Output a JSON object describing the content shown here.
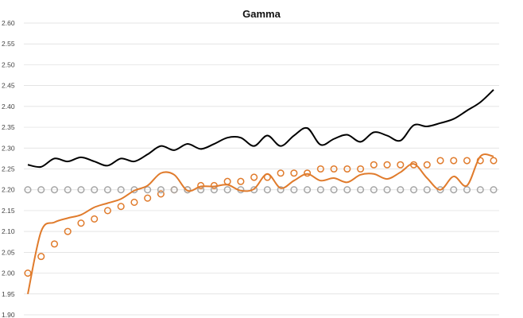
{
  "chart_data": {
    "type": "line",
    "title": "Gamma",
    "xlabel": "",
    "ylabel": "",
    "ylim": [
      1.9,
      2.6
    ],
    "y_ticks": [
      "2.60",
      "2.55",
      "2.50",
      "2.45",
      "2.40",
      "2.35",
      "2.30",
      "2.25",
      "2.20",
      "2.15",
      "2.10",
      "2.05",
      "2.00",
      "1.95",
      "1.90"
    ],
    "grid": "horizontal",
    "legend": "none",
    "x_count": 36,
    "series": [
      {
        "kind": "line",
        "color": "#000000",
        "values": [
          2.26,
          2.255,
          2.275,
          2.268,
          2.278,
          2.268,
          2.258,
          2.275,
          2.268,
          2.285,
          2.305,
          2.295,
          2.31,
          2.298,
          2.31,
          2.325,
          2.325,
          2.305,
          2.33,
          2.305,
          2.33,
          2.348,
          2.308,
          2.322,
          2.332,
          2.315,
          2.338,
          2.33,
          2.318,
          2.355,
          2.352,
          2.36,
          2.37,
          2.39,
          2.41,
          2.44
        ]
      },
      {
        "kind": "line",
        "color": "#E07B2C",
        "values": [
          1.95,
          2.1,
          2.122,
          2.132,
          2.14,
          2.158,
          2.168,
          2.178,
          2.198,
          2.21,
          2.24,
          2.236,
          2.198,
          2.208,
          2.208,
          2.212,
          2.198,
          2.202,
          2.238,
          2.204,
          2.222,
          2.238,
          2.222,
          2.228,
          2.218,
          2.236,
          2.238,
          2.226,
          2.242,
          2.262,
          2.228,
          2.2,
          2.232,
          2.21,
          2.28,
          2.28
        ]
      },
      {
        "kind": "markers",
        "color": "#E07B2C",
        "values": [
          2.0,
          2.04,
          2.07,
          2.1,
          2.12,
          2.13,
          2.15,
          2.16,
          2.17,
          2.18,
          2.19,
          2.2,
          2.2,
          2.21,
          2.21,
          2.22,
          2.22,
          2.23,
          2.23,
          2.24,
          2.24,
          2.24,
          2.25,
          2.25,
          2.25,
          2.25,
          2.26,
          2.26,
          2.26,
          2.26,
          2.26,
          2.27,
          2.27,
          2.27,
          2.27,
          2.27
        ]
      },
      {
        "kind": "markers",
        "color": "#A6A6A6",
        "values": [
          2.2,
          2.2,
          2.2,
          2.2,
          2.2,
          2.2,
          2.2,
          2.2,
          2.2,
          2.2,
          2.2,
          2.2,
          2.2,
          2.2,
          2.2,
          2.2,
          2.2,
          2.2,
          2.2,
          2.2,
          2.2,
          2.2,
          2.2,
          2.2,
          2.2,
          2.2,
          2.2,
          2.2,
          2.2,
          2.2,
          2.2,
          2.2,
          2.2,
          2.2,
          2.2,
          2.2
        ]
      }
    ]
  }
}
